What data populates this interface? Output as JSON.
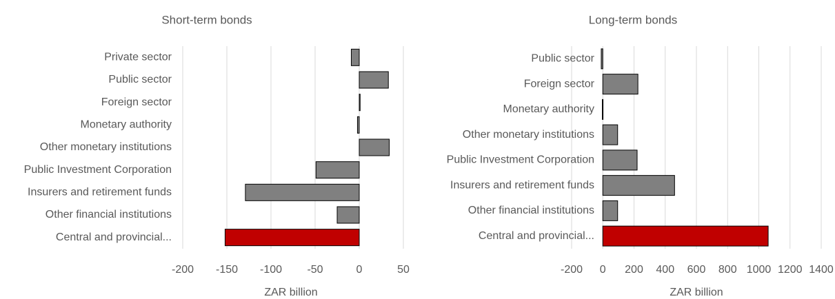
{
  "chart_data": [
    {
      "type": "bar",
      "orientation": "horizontal",
      "title": "Short-term bonds",
      "xlabel": "ZAR billion",
      "categories": [
        "Private sector",
        "Public sector",
        "Foreign sector",
        "Monetary authority",
        "Other monetary institutions",
        "Public Investment Corporation",
        "Insurers and retirement funds",
        "Other financial institutions",
        "Central and provincial..."
      ],
      "values": [
        -9,
        33,
        1,
        -2,
        34,
        -49,
        -129,
        -25,
        -152
      ],
      "colors": [
        "#808080",
        "#808080",
        "#808080",
        "#808080",
        "#808080",
        "#808080",
        "#808080",
        "#808080",
        "#c00000"
      ],
      "xlim": [
        -200,
        50
      ],
      "xticks": [
        -200,
        -150,
        -100,
        -50,
        0,
        50
      ],
      "grid": true
    },
    {
      "type": "bar",
      "orientation": "horizontal",
      "title": "Long-term bonds",
      "xlabel": "ZAR billion",
      "categories": [
        "Public sector",
        "Foreign sector",
        "Monetary authority",
        "Other monetary institutions",
        "Public Investment Corporation",
        "Insurers and retirement funds",
        "Other financial institutions",
        "Central and provincial..."
      ],
      "values": [
        -10,
        225,
        -3,
        95,
        220,
        460,
        95,
        1060
      ],
      "colors": [
        "#808080",
        "#808080",
        "#808080",
        "#808080",
        "#808080",
        "#808080",
        "#808080",
        "#c00000"
      ],
      "xlim": [
        -200,
        1400
      ],
      "xticks": [
        -200,
        0,
        200,
        400,
        600,
        800,
        1000,
        1200,
        1400
      ],
      "grid": true
    }
  ]
}
